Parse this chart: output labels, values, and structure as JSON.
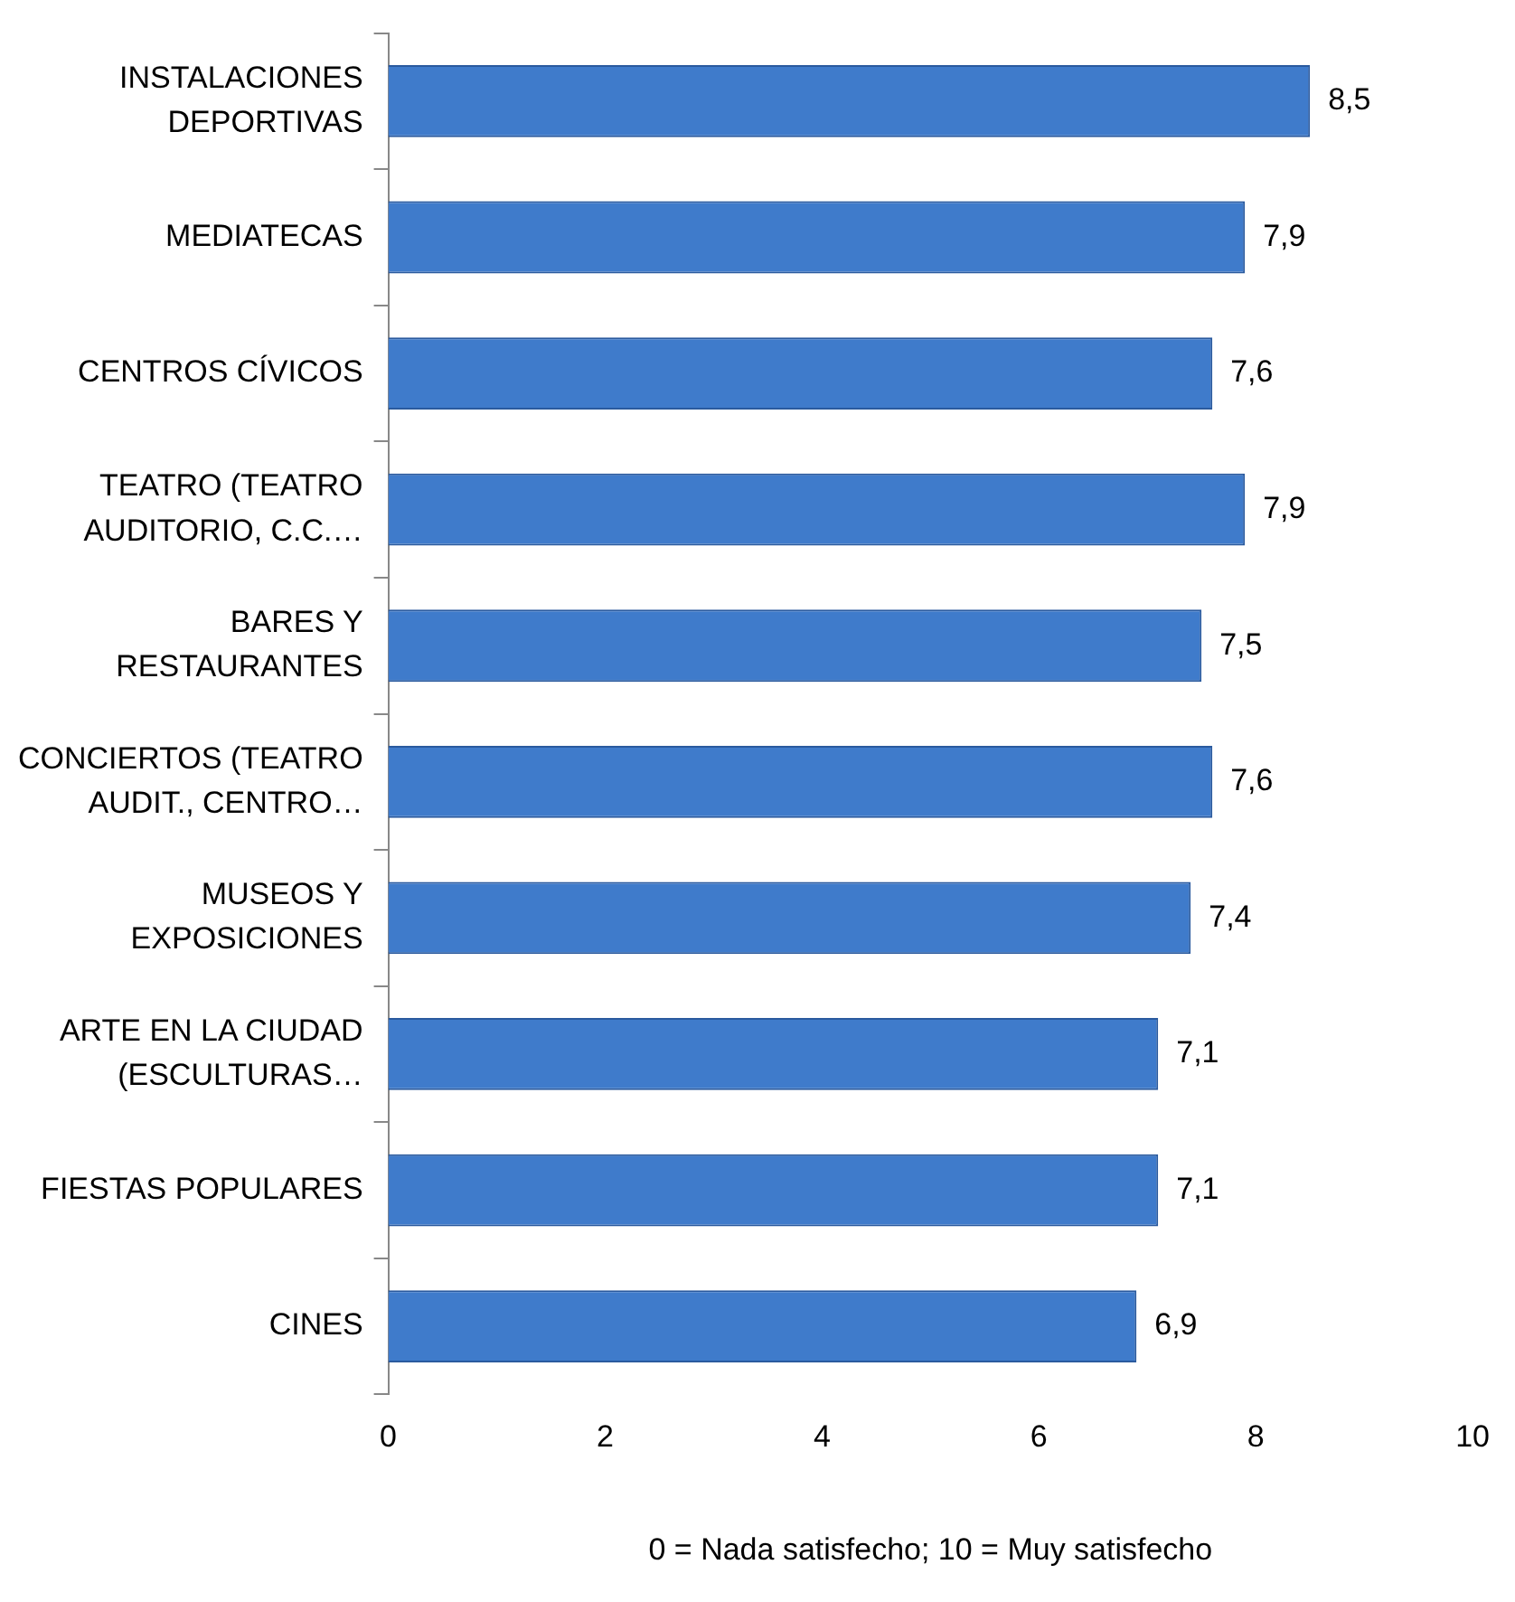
{
  "chart_data": {
    "type": "bar",
    "orientation": "horizontal",
    "categories": [
      "INSTALACIONES DEPORTIVAS",
      "MEDIATECAS",
      "CENTROS CÍVICOS",
      "TEATRO (TEATRO AUDITORIO, C.C.…",
      "BARES Y RESTAURANTES",
      "CONCIERTOS (TEATRO AUDIT., CENTRO…",
      "MUSEOS Y EXPOSICIONES",
      "ARTE EN LA CIUDAD (ESCULTURAS…",
      "FIESTAS POPULARES",
      "CINES"
    ],
    "values": [
      8.5,
      7.9,
      7.6,
      7.9,
      7.5,
      7.6,
      7.4,
      7.1,
      7.1,
      6.9
    ],
    "value_labels": [
      "8,5",
      "7,9",
      "7,6",
      "7,9",
      "7,5",
      "7,6",
      "7,4",
      "7,1",
      "7,1",
      "6,9"
    ],
    "color": "#3f7bcb",
    "xlim": [
      0,
      10
    ],
    "xticks": [
      0,
      2,
      4,
      6,
      8,
      10
    ],
    "xlabel": "0 = Nada satisfecho; 10 = Muy satisfecho",
    "grid": false,
    "legend": false
  }
}
